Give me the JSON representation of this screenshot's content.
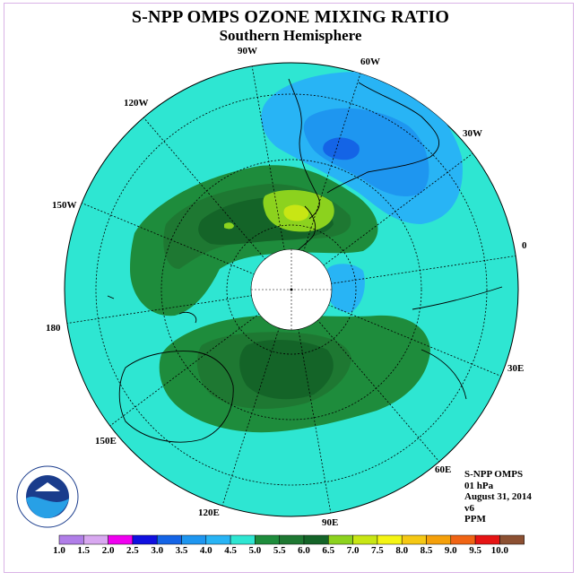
{
  "title": "S-NPP OMPS OZONE MIXING RATIO",
  "subtitle": "Southern Hemisphere",
  "meridian_labels": {
    "w90": "90W",
    "w60": "60W",
    "w30": "30W",
    "e0": "0",
    "e30": "30E",
    "e60": "60E",
    "e90": "90E",
    "e120": "120E",
    "e150": "150E",
    "d180": "180",
    "w150": "150W",
    "w120": "120W"
  },
  "info": {
    "instrument": "S-NPP OMPS",
    "level": "01 hPa",
    "date": "August 31, 2014",
    "version": "v6",
    "units": "PPM"
  },
  "logo": {
    "text": "NOAA",
    "ring_text": "NATIONAL OCEANIC AND ATMOSPHERIC ADMINISTRATION · U.S. DEPARTMENT OF COMMERCE"
  },
  "colorbar": {
    "labels": [
      "1.0",
      "1.5",
      "2.0",
      "2.5",
      "3.0",
      "3.5",
      "4.0",
      "4.5",
      "5.0",
      "5.5",
      "6.0",
      "6.5",
      "7.0",
      "7.5",
      "8.0",
      "8.5",
      "9.0",
      "9.5",
      "10.0"
    ],
    "colors": [
      "#b07ee8",
      "#d8a8f0",
      "#f000f0",
      "#1010e0",
      "#1464e6",
      "#1e96f0",
      "#28b4f5",
      "#2ee6d2",
      "#1e8c3c",
      "#1e7832",
      "#146428",
      "#8cd21e",
      "#c8e614",
      "#f5f514",
      "#f5c814",
      "#f5a00a",
      "#f06414",
      "#e61414",
      "#8c5032"
    ]
  },
  "map": {
    "background": "#2ee6d2",
    "contour_colors": {
      "c35": "#1e96f0",
      "c40": "#28b4f5",
      "c50": "#1e8c3c",
      "c55": "#1e7832",
      "c60": "#146428",
      "c65": "#8cd21e",
      "c70": "#c8e614"
    }
  }
}
